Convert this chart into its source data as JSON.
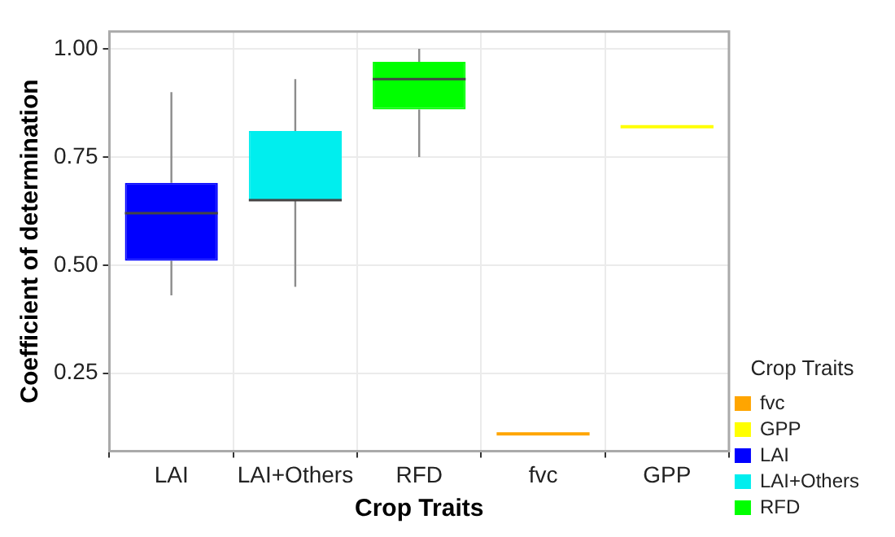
{
  "chart_data": {
    "type": "box",
    "xlabel": "Crop Traits",
    "ylabel": "Coefficient of determination",
    "legend_title": "Crop Traits",
    "categories": [
      "LAI",
      "LAI+Others",
      "RFD",
      "fvc",
      "GPP"
    ],
    "ylim": [
      0.07,
      1.04
    ],
    "yticks": [
      0.25,
      {
        "value": 0.5,
        "label": "0.50"
      },
      0.75,
      {
        "value": 1.0,
        "label": "1.00"
      }
    ],
    "grid": true,
    "legend": "bottom right",
    "series": [
      {
        "name": "fvc",
        "color": "#ffa500",
        "boxes": [
          null,
          null,
          null,
          {
            "low": 0.11,
            "q1": 0.11,
            "median": 0.11,
            "q3": 0.11,
            "high": 0.11
          },
          null
        ]
      },
      {
        "name": "GPP",
        "color": "#ffff00",
        "boxes": [
          null,
          null,
          null,
          null,
          {
            "low": 0.82,
            "q1": 0.82,
            "median": 0.82,
            "q3": 0.82,
            "high": 0.82
          }
        ]
      },
      {
        "name": "LAI",
        "color": "#0000ff",
        "boxes": [
          {
            "low": 0.43,
            "q1": 0.51,
            "median": 0.62,
            "q3": 0.69,
            "high": 0.9
          },
          null,
          null,
          null,
          null
        ]
      },
      {
        "name": "LAI+Others",
        "color": "#00eeee",
        "boxes": [
          null,
          {
            "low": 0.45,
            "q1": 0.65,
            "median": 0.65,
            "q3": 0.81,
            "high": 0.93
          },
          null,
          null,
          null
        ]
      },
      {
        "name": "RFD",
        "color": "#00ff00",
        "boxes": [
          null,
          null,
          {
            "low": 0.75,
            "q1": 0.86,
            "median": 0.93,
            "q3": 0.97,
            "high": 1.0
          },
          null,
          null
        ]
      }
    ]
  }
}
